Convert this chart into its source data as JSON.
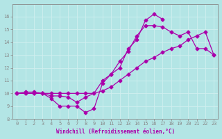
{
  "background_color": "#b3e5e5",
  "grid_color": "#d0efef",
  "line_color": "#aa00aa",
  "xlim": [
    -0.5,
    23.5
  ],
  "ylim": [
    8,
    17
  ],
  "xlabel": "Windchill (Refroidissement éolien,°C)",
  "xticks": [
    0,
    1,
    2,
    3,
    4,
    5,
    6,
    7,
    8,
    9,
    10,
    11,
    12,
    13,
    14,
    15,
    16,
    17,
    18,
    19,
    20,
    21,
    22,
    23
  ],
  "yticks": [
    8,
    9,
    10,
    11,
    12,
    13,
    14,
    15,
    16
  ],
  "line1_x": [
    0,
    1,
    2,
    3,
    4,
    5,
    6,
    7,
    8,
    9,
    10,
    11,
    12,
    13,
    14,
    15,
    16,
    17
  ],
  "line1_y": [
    10.0,
    10.1,
    10.1,
    10.0,
    9.6,
    9.0,
    9.0,
    9.0,
    8.5,
    8.8,
    10.8,
    11.5,
    12.0,
    13.5,
    14.2,
    15.7,
    16.2,
    15.8
  ],
  "line2_x": [
    0,
    1,
    2,
    3,
    4,
    5,
    6,
    7,
    8,
    9,
    10,
    11,
    12,
    13,
    14,
    15,
    16,
    17,
    18,
    19,
    20,
    21,
    22,
    23
  ],
  "line2_y": [
    10.0,
    10.0,
    10.0,
    10.0,
    9.8,
    9.8,
    9.7,
    9.3,
    9.7,
    10.0,
    11.0,
    11.5,
    12.5,
    13.3,
    14.5,
    15.3,
    15.3,
    15.2,
    14.8,
    14.5,
    14.8,
    13.5,
    13.5,
    13.0
  ],
  "line3_x": [
    0,
    1,
    2,
    3,
    4,
    5,
    6,
    7,
    8,
    9,
    10,
    11,
    12,
    13,
    14,
    15,
    16,
    17,
    18,
    19,
    20,
    21,
    22,
    23
  ],
  "line3_y": [
    10.0,
    10.0,
    10.0,
    10.0,
    10.0,
    10.0,
    10.0,
    10.0,
    10.0,
    10.0,
    10.2,
    10.5,
    11.0,
    11.5,
    12.0,
    12.5,
    12.8,
    13.2,
    13.5,
    13.7,
    14.2,
    14.5,
    14.8,
    13.0
  ],
  "marker": "D",
  "markersize": 2.5,
  "linewidth": 0.9
}
